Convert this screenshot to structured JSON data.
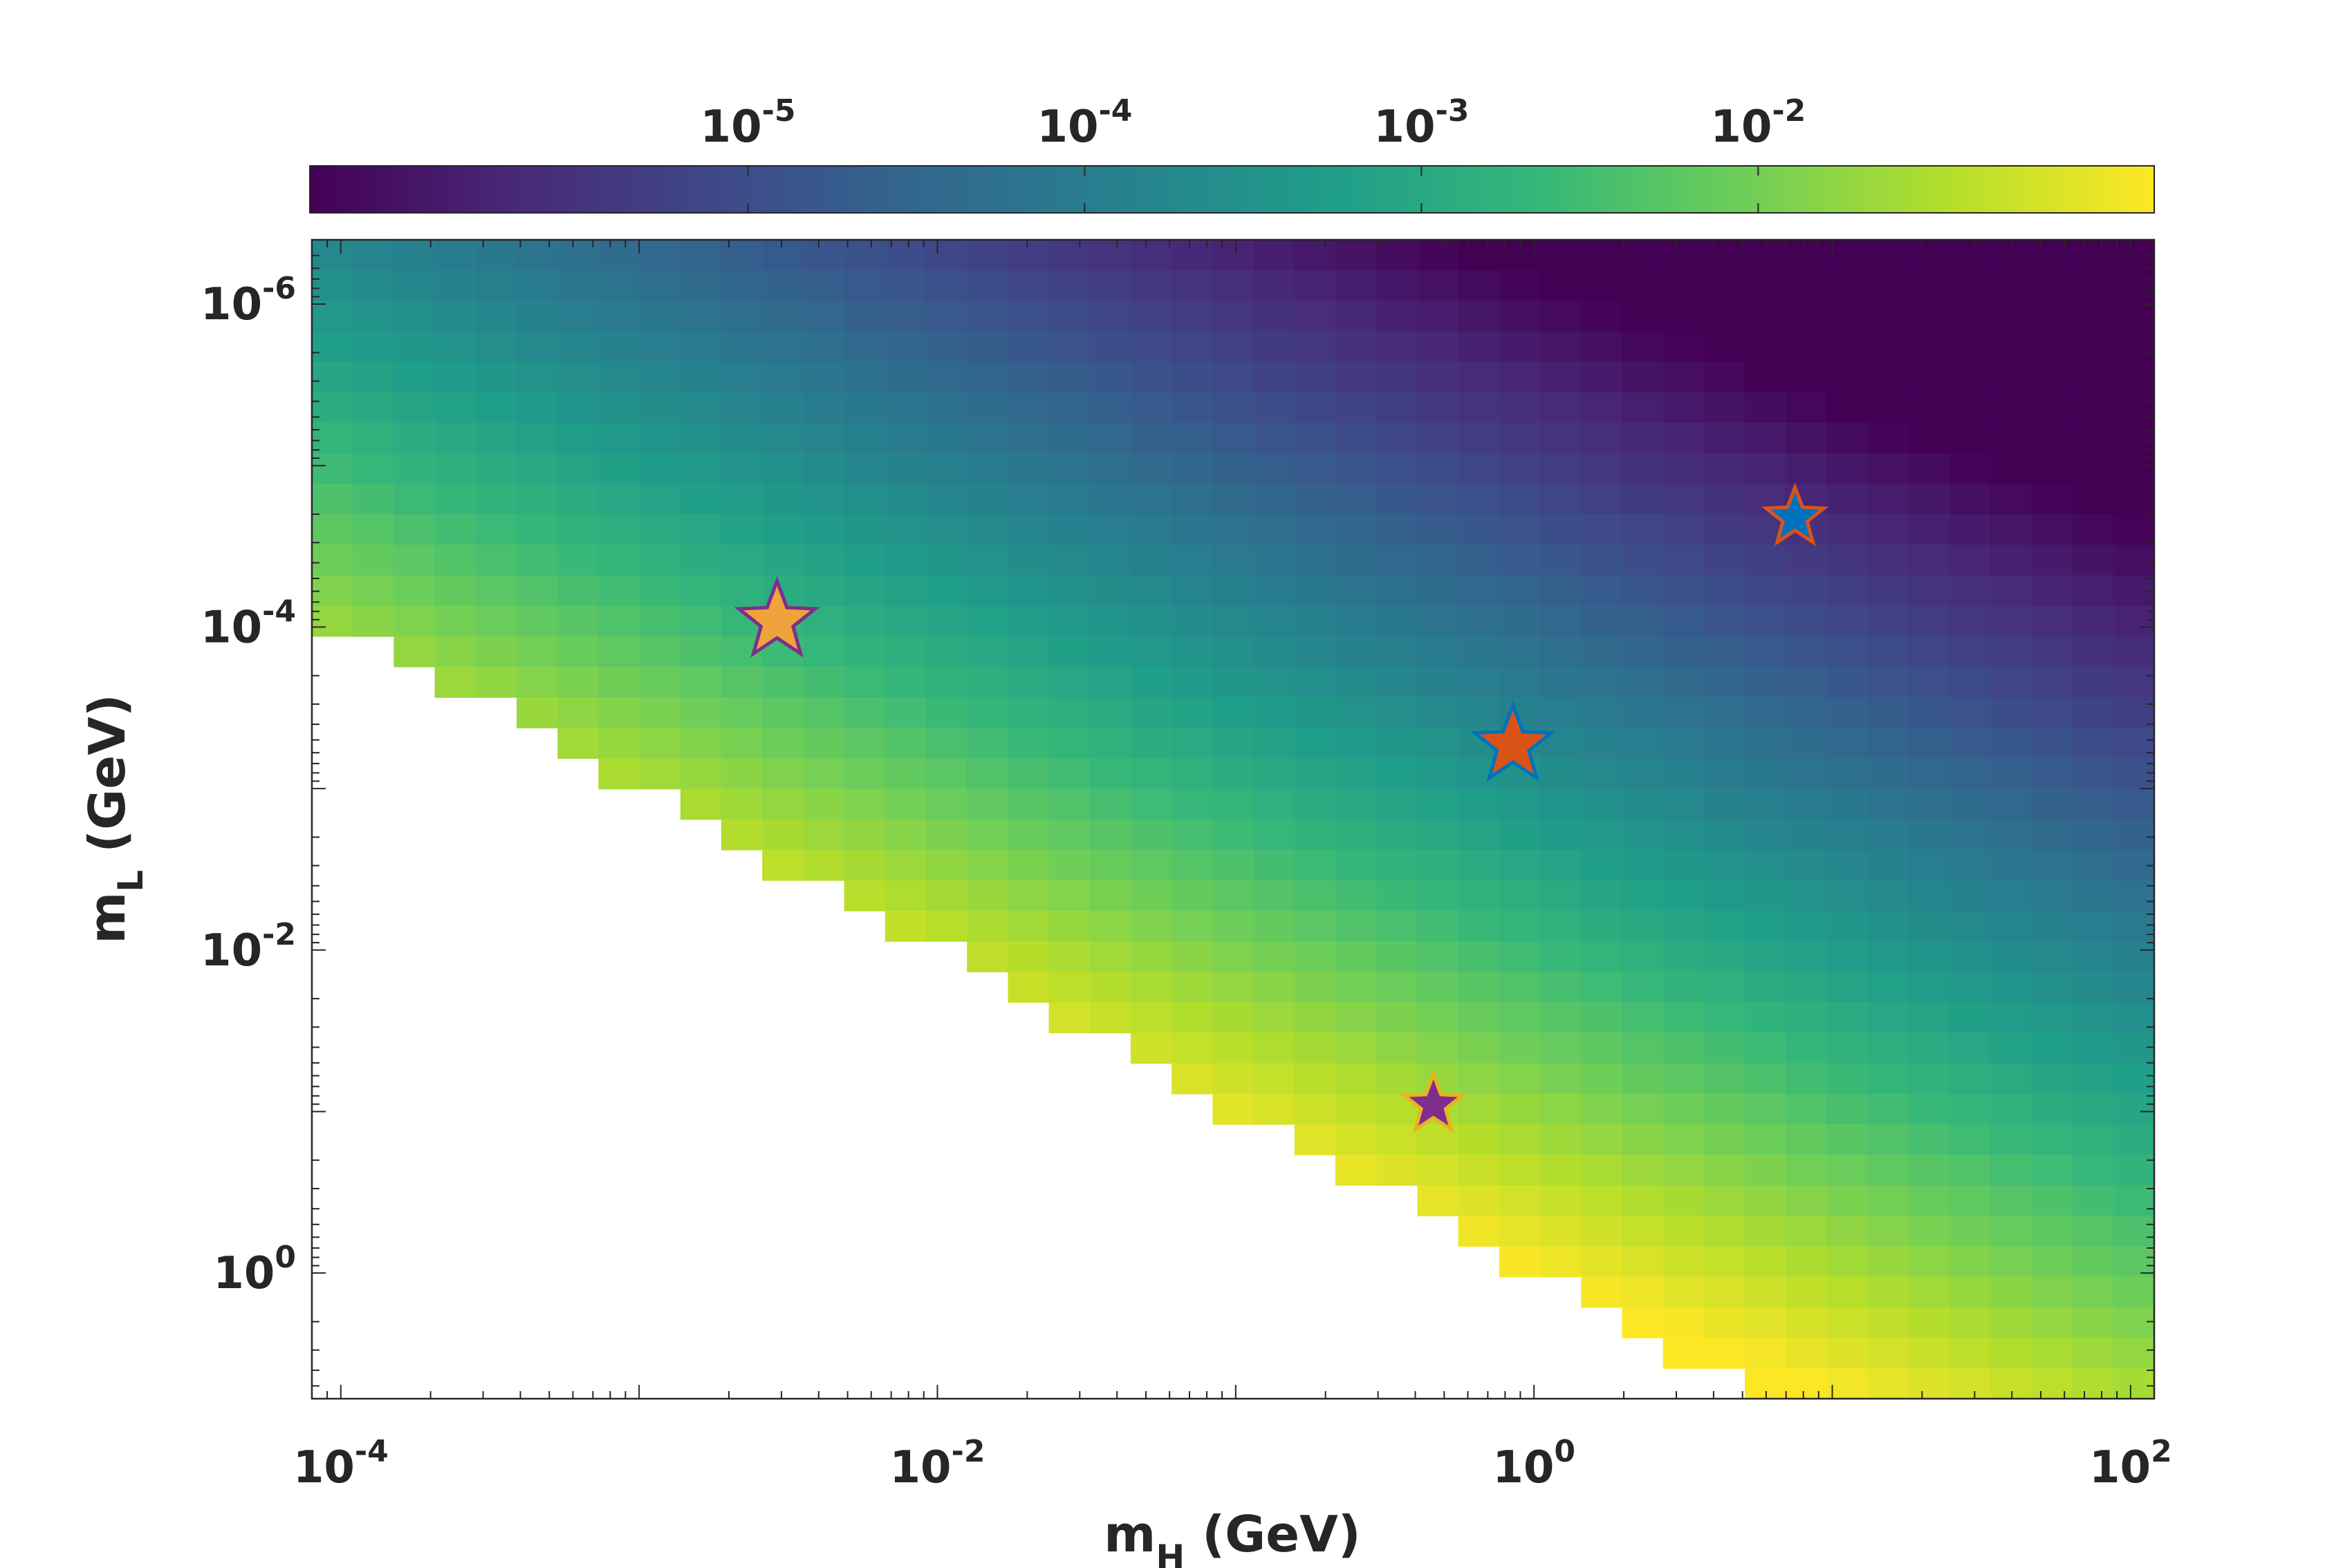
{
  "chart_data": {
    "type": "heatmap",
    "title": "",
    "x_axis": {
      "label_main": "m",
      "label_sub": "H",
      "label_unit": " (GeV)",
      "scale": "log",
      "range": [
        8e-05,
        120
      ],
      "ticks": [
        {
          "value": 0.0001,
          "base": "10",
          "exp": "-4"
        },
        {
          "value": 0.01,
          "base": "10",
          "exp": "-2"
        },
        {
          "value": 1,
          "base": "10",
          "exp": "0"
        },
        {
          "value": 100,
          "base": "10",
          "exp": "2"
        }
      ]
    },
    "y_axis": {
      "label_main": "m",
      "label_sub": "L",
      "label_unit": " (GeV)",
      "scale": "log",
      "reversed": true,
      "range": [
        4e-07,
        6
      ],
      "ticks": [
        {
          "value": 1e-06,
          "base": "10",
          "exp": "-6"
        },
        {
          "value": 0.0001,
          "base": "10",
          "exp": "-4"
        },
        {
          "value": 0.01,
          "base": "10",
          "exp": "-2"
        },
        {
          "value": 1,
          "base": "10",
          "exp": "0"
        }
      ]
    },
    "colorbar": {
      "scale": "log",
      "colormap": "viridis",
      "range": [
        5e-07,
        0.15
      ],
      "placement": "top",
      "ticks": [
        {
          "value": 1e-05,
          "base": "10",
          "exp": "-5"
        },
        {
          "value": 0.0001,
          "base": "10",
          "exp": "-4"
        },
        {
          "value": 0.001,
          "base": "10",
          "exp": "-3"
        },
        {
          "value": 0.01,
          "base": "10",
          "exp": "-2"
        }
      ]
    },
    "heatmap_grid": {
      "x_range": [
        8e-05,
        120
      ],
      "y_range": [
        4e-07,
        6
      ],
      "nx": 45,
      "ny": 38,
      "allowed_region": "m_L < m_H",
      "value_model": "0.15 * (m_L / m_H)^0.67 * m_L^0.22"
    },
    "markers": [
      {
        "name": "",
        "x": 0.0029,
        "y": 9.2e-05,
        "fill": "#f0a33a",
        "stroke": "#7e2f8e",
        "size": "large"
      },
      {
        "name": "",
        "x": 0.85,
        "y": 0.00054,
        "fill": "#d95319",
        "stroke": "#0072bd",
        "size": "large"
      },
      {
        "name": "",
        "x": 7.5,
        "y": 2.1e-05,
        "fill": "#0072bd",
        "stroke": "#d95319",
        "size": "medium"
      },
      {
        "name": "",
        "x": 0.46,
        "y": 0.091,
        "fill": "#7e2f8e",
        "stroke": "#edb120",
        "size": "medium"
      }
    ]
  }
}
